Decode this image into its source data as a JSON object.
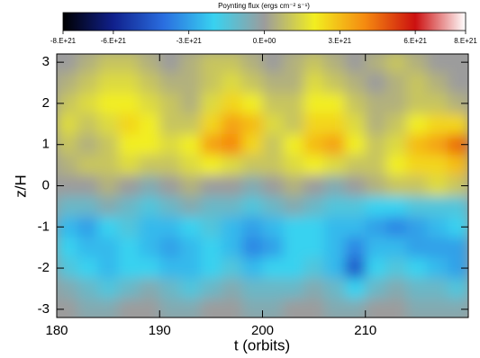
{
  "chart_data": {
    "type": "heatmap",
    "colorbar_title": "Poynting flux (ergs cm⁻² s⁻¹)",
    "xlabel": "t (orbits)",
    "ylabel": "z/H",
    "xlim": [
      180,
      220
    ],
    "ylim": [
      -3.2,
      3.2
    ],
    "xticks": [
      180,
      190,
      200,
      210
    ],
    "yticks": [
      -3,
      -2,
      -1,
      0,
      1,
      2,
      3
    ],
    "clim": [
      -8e+21,
      8e+21
    ],
    "cticks": [
      {
        "value": -8e+21,
        "label": "-8.E+21"
      },
      {
        "value": -6e+21,
        "label": "-6.E+21"
      },
      {
        "value": -3e+21,
        "label": "-3.E+21"
      },
      {
        "value": 0,
        "label": "0.E+00"
      },
      {
        "value": 3e+21,
        "label": "3.E+21"
      },
      {
        "value": 6e+21,
        "label": "6.E+21"
      },
      {
        "value": 8e+21,
        "label": "8.E+21"
      }
    ],
    "colors": [
      "#000000",
      "#10208c",
      "#2a6ee0",
      "#38d2f0",
      "#9c9c9c",
      "#f2ee20",
      "#f58a10",
      "#cc1010",
      "#ffffff"
    ],
    "x": [
      181,
      183,
      185,
      187,
      189,
      191,
      193,
      195,
      197,
      199,
      201,
      203,
      205,
      207,
      209,
      211,
      213,
      215,
      217,
      219
    ],
    "y": [
      3,
      2.5,
      2,
      1.5,
      1,
      0.5,
      0,
      -0.5,
      -1,
      -1.5,
      -2,
      -2.5,
      -3
    ],
    "z": [
      [
        0,
        5e+20,
        1e+21,
        1e+21,
        5e+20,
        0,
        5e+20,
        1e+21,
        1e+21,
        5e+20,
        0,
        5e+20,
        1e+21,
        5e+20,
        0,
        5e+20,
        1e+21,
        5e+20,
        0,
        0
      ],
      [
        5e+20,
        1e+21,
        1.5e+21,
        1.5e+21,
        1e+21,
        5e+20,
        5e+20,
        1e+21,
        1.5e+21,
        1e+21,
        5e+20,
        5e+20,
        1.5e+21,
        1e+21,
        5e+20,
        0,
        5e+20,
        1e+21,
        5e+20,
        0
      ],
      [
        1e+21,
        1.5e+21,
        2e+21,
        2e+21,
        1.5e+21,
        1e+21,
        5e+20,
        1.5e+21,
        2.5e+21,
        2e+21,
        1e+21,
        1e+21,
        2e+21,
        2e+21,
        1e+21,
        5e+20,
        5e+20,
        1e+21,
        1e+21,
        5e+20
      ],
      [
        1.5e+21,
        1e+21,
        1.5e+21,
        2.5e+21,
        2e+21,
        1e+21,
        1e+21,
        2.5e+21,
        3.5e+21,
        3e+21,
        1.5e+21,
        1e+21,
        2.5e+21,
        2.5e+21,
        1.5e+21,
        5e+20,
        1e+21,
        2e+21,
        2.5e+21,
        2.5e+21
      ],
      [
        1e+21,
        5e+20,
        1e+21,
        2e+21,
        2e+21,
        1.5e+21,
        2e+21,
        3.5e+21,
        4e+21,
        2.5e+21,
        1e+21,
        2e+21,
        3e+21,
        3.5e+21,
        2e+21,
        1e+21,
        1.5e+21,
        3e+21,
        3.5e+21,
        4.5e+21
      ],
      [
        5e+20,
        1e+21,
        1e+21,
        1.5e+21,
        1e+21,
        1e+21,
        1.5e+21,
        2e+21,
        1.5e+21,
        1e+21,
        1e+21,
        1.5e+21,
        2e+21,
        1.5e+21,
        1e+21,
        1e+21,
        2e+21,
        2.5e+21,
        2.5e+21,
        3e+21
      ],
      [
        0,
        0,
        5e+20,
        0,
        -5e+20,
        0,
        5e+20,
        0,
        0,
        -5e+20,
        0,
        5e+20,
        0,
        -5e+20,
        0,
        5e+20,
        1e+21,
        1e+21,
        1.5e+21,
        1e+21
      ],
      [
        -1e+21,
        -1e+21,
        -5e+20,
        -1e+21,
        -1.5e+21,
        -1e+21,
        -5e+20,
        -1e+21,
        -1e+21,
        -1.5e+21,
        -1e+21,
        -5e+20,
        -1e+21,
        -1.5e+21,
        -1.5e+21,
        -2e+21,
        -2e+21,
        -1.5e+21,
        -1.5e+21,
        -1.5e+21
      ],
      [
        -2.5e+21,
        -3e+21,
        -2e+21,
        -1.5e+21,
        -2.5e+21,
        -2.5e+21,
        -2e+21,
        -1.5e+21,
        -2.5e+21,
        -3e+21,
        -2.5e+21,
        -2e+21,
        -2e+21,
        -2.5e+21,
        -2.5e+21,
        -3e+21,
        -3.5e+21,
        -3e+21,
        -2.5e+21,
        -2e+21
      ],
      [
        -2e+21,
        -2.5e+21,
        -2.5e+21,
        -2e+21,
        -2.5e+21,
        -3e+21,
        -2.5e+21,
        -2e+21,
        -2.5e+21,
        -3.5e+21,
        -3e+21,
        -2e+21,
        -2e+21,
        -2.5e+21,
        -3.5e+21,
        -2.5e+21,
        -2.5e+21,
        -3e+21,
        -3e+21,
        -3e+21
      ],
      [
        -1.5e+21,
        -2e+21,
        -2.5e+21,
        -2e+21,
        -2e+21,
        -2.5e+21,
        -2.5e+21,
        -2e+21,
        -1.5e+21,
        -2.5e+21,
        -2e+21,
        -2e+21,
        -1.5e+21,
        -2.5e+21,
        -4.5e+21,
        -2e+21,
        -1.5e+21,
        -2e+21,
        -2.5e+21,
        -3e+21
      ],
      [
        -5e+20,
        -1e+21,
        -1.5e+21,
        -1e+21,
        -5e+20,
        -1e+21,
        -1.5e+21,
        -1e+21,
        -5e+20,
        -1e+21,
        -1e+21,
        -1e+21,
        -5e+20,
        -1e+21,
        -2e+21,
        -1e+21,
        -5e+20,
        -1e+21,
        -1e+21,
        -1.5e+21
      ],
      [
        0,
        -5e+20,
        -5e+20,
        0,
        0,
        -5e+20,
        -5e+20,
        0,
        0,
        -5e+20,
        -5e+20,
        0,
        0,
        -5e+20,
        -5e+20,
        0,
        0,
        -5e+20,
        -5e+20,
        -5e+20
      ]
    ]
  }
}
